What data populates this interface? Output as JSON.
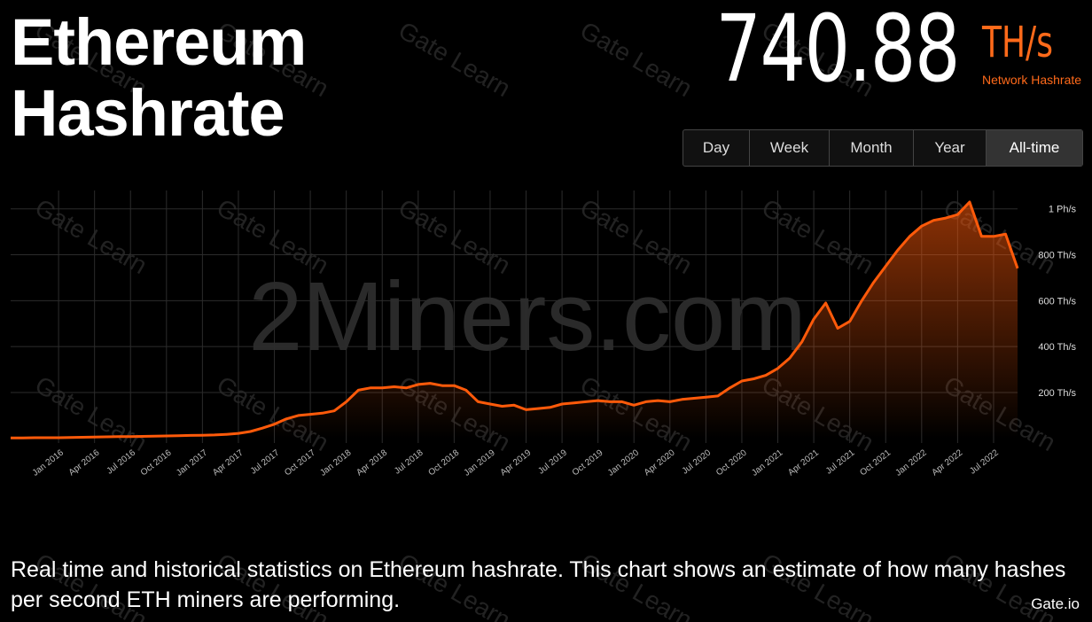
{
  "header": {
    "title": "Ethereum Hashrate",
    "current_value": "740.88",
    "unit": "TH/s",
    "subtitle": "Network Hashrate"
  },
  "buttons": [
    "Day",
    "Week",
    "Month",
    "Year",
    "All-time"
  ],
  "description": "Real time and historical statistics on Ethereum hashrate. This chart shows an estimate of how many hashes per second ETH miners are performing.",
  "watermarks": {
    "gate_learn": "Gate Learn",
    "site": "2Miners.com",
    "logo": "Gate.io"
  },
  "chart_data": {
    "type": "area",
    "x": [
      "2015-09",
      "2015-10",
      "2015-11",
      "2015-12",
      "2016-01",
      "2016-02",
      "2016-03",
      "2016-04",
      "2016-05",
      "2016-06",
      "2016-07",
      "2016-08",
      "2016-09",
      "2016-10",
      "2016-11",
      "2016-12",
      "2017-01",
      "2017-02",
      "2017-03",
      "2017-04",
      "2017-05",
      "2017-06",
      "2017-07",
      "2017-08",
      "2017-09",
      "2017-10",
      "2017-11",
      "2017-12",
      "2018-01",
      "2018-02",
      "2018-03",
      "2018-04",
      "2018-05",
      "2018-06",
      "2018-07",
      "2018-08",
      "2018-09",
      "2018-10",
      "2018-11",
      "2018-12",
      "2019-01",
      "2019-02",
      "2019-03",
      "2019-04",
      "2019-05",
      "2019-06",
      "2019-07",
      "2019-08",
      "2019-09",
      "2019-10",
      "2019-11",
      "2019-12",
      "2020-01",
      "2020-02",
      "2020-03",
      "2020-04",
      "2020-05",
      "2020-06",
      "2020-07",
      "2020-08",
      "2020-09",
      "2020-10",
      "2020-11",
      "2020-12",
      "2021-01",
      "2021-02",
      "2021-03",
      "2021-04",
      "2021-05",
      "2021-06",
      "2021-07",
      "2021-08",
      "2021-09",
      "2021-10",
      "2021-11",
      "2021-12",
      "2022-01",
      "2022-02",
      "2022-03",
      "2022-04",
      "2022-05",
      "2022-06",
      "2022-07",
      "2022-08",
      "2022-09"
    ],
    "series": [
      {
        "name": "Network Hashrate",
        "color": "#ff5a0a",
        "values": [
          2,
          2,
          3,
          3,
          3,
          4,
          5,
          6,
          7,
          8,
          8,
          9,
          10,
          11,
          12,
          13,
          14,
          15,
          18,
          22,
          30,
          45,
          62,
          85,
          100,
          105,
          110,
          120,
          160,
          210,
          220,
          220,
          225,
          220,
          235,
          240,
          230,
          230,
          210,
          160,
          150,
          140,
          145,
          125,
          130,
          135,
          150,
          155,
          160,
          165,
          160,
          160,
          145,
          160,
          165,
          160,
          170,
          175,
          180,
          185,
          220,
          250,
          260,
          275,
          305,
          350,
          420,
          520,
          590,
          480,
          510,
          600,
          680,
          750,
          820,
          880,
          925,
          950,
          960,
          975,
          1030,
          880,
          880,
          890,
          740.88
        ]
      }
    ],
    "xlim": [
      "2015-09",
      "2022-09"
    ],
    "xticks": [
      {
        "value": "2016-01",
        "label": "Jan 2016"
      },
      {
        "value": "2016-04",
        "label": "Apr 2016"
      },
      {
        "value": "2016-07",
        "label": "Jul 2016"
      },
      {
        "value": "2016-10",
        "label": "Oct 2016"
      },
      {
        "value": "2017-01",
        "label": "Jan 2017"
      },
      {
        "value": "2017-04",
        "label": "Apr 2017"
      },
      {
        "value": "2017-07",
        "label": "Jul 2017"
      },
      {
        "value": "2017-10",
        "label": "Oct 2017"
      },
      {
        "value": "2018-01",
        "label": "Jan 2018"
      },
      {
        "value": "2018-04",
        "label": "Apr 2018"
      },
      {
        "value": "2018-07",
        "label": "Jul 2018"
      },
      {
        "value": "2018-10",
        "label": "Oct 2018"
      },
      {
        "value": "2019-01",
        "label": "Jan 2019"
      },
      {
        "value": "2019-04",
        "label": "Apr 2019"
      },
      {
        "value": "2019-07",
        "label": "Jul 2019"
      },
      {
        "value": "2019-10",
        "label": "Oct 2019"
      },
      {
        "value": "2020-01",
        "label": "Jan 2020"
      },
      {
        "value": "2020-04",
        "label": "Apr 2020"
      },
      {
        "value": "2020-07",
        "label": "Jul 2020"
      },
      {
        "value": "2020-10",
        "label": "Oct 2020"
      },
      {
        "value": "2021-01",
        "label": "Jan 2021"
      },
      {
        "value": "2021-04",
        "label": "Apr 2021"
      },
      {
        "value": "2021-07",
        "label": "Jul 2021"
      },
      {
        "value": "2021-10",
        "label": "Oct 2021"
      },
      {
        "value": "2022-01",
        "label": "Jan 2022"
      },
      {
        "value": "2022-04",
        "label": "Apr 2022"
      },
      {
        "value": "2022-07",
        "label": "Jul 2022"
      }
    ],
    "ylim": [
      -20,
      1080
    ],
    "yticks": [
      {
        "value": 200,
        "label": "200 Th/s"
      },
      {
        "value": 400,
        "label": "400 Th/s"
      },
      {
        "value": 600,
        "label": "600 Th/s"
      },
      {
        "value": 800,
        "label": "800 Th/s"
      },
      {
        "value": 1000,
        "label": "1 Ph/s"
      }
    ],
    "grid": true
  }
}
